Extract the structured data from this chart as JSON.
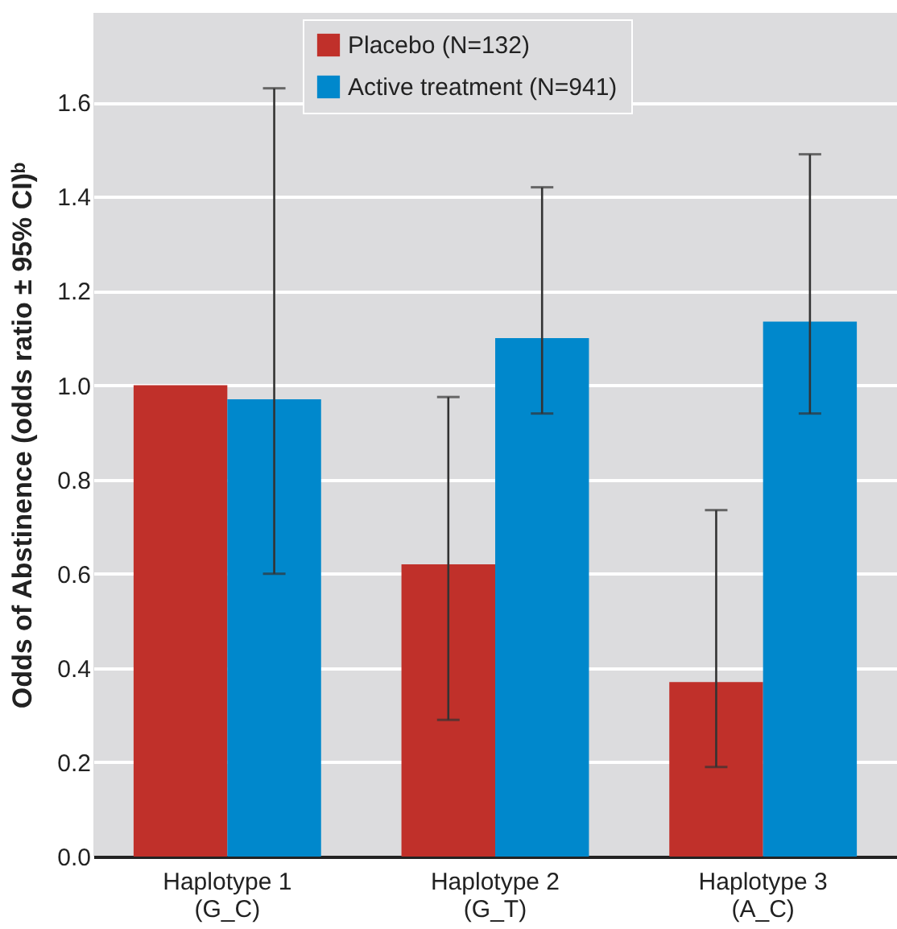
{
  "chart_data": {
    "type": "bar",
    "ylabel": "Odds of Abstinence (odds ratio ± 95% CI)ᵇ",
    "categories": [
      "Haplotype 1\n(G_C)",
      "Haplotype 2\n(G_T)",
      "Haplotype 3\n(A_C)"
    ],
    "series": [
      {
        "name": "Placebo (N=132)",
        "color": "#c0302a",
        "values": [
          1.0,
          0.62,
          0.37
        ],
        "errors": [
          null,
          [
            0.29,
            0.975
          ],
          [
            0.19,
            0.735
          ]
        ]
      },
      {
        "name": "Active treatment (N=941)",
        "color": "#0088cc",
        "values": [
          0.97,
          1.1,
          1.135
        ],
        "errors": [
          [
            0.6,
            1.63
          ],
          [
            0.94,
            1.42
          ],
          [
            0.94,
            1.49
          ]
        ]
      }
    ],
    "ylim": [
      0,
      1.79
    ],
    "yticks": [
      {
        "value": 0,
        "label": "0.0"
      },
      0.2,
      0.4,
      0.6,
      0.8,
      {
        "value": 1,
        "label": "1.0"
      },
      1.2,
      1.4,
      1.6
    ],
    "grid": "y",
    "legend": "top"
  }
}
